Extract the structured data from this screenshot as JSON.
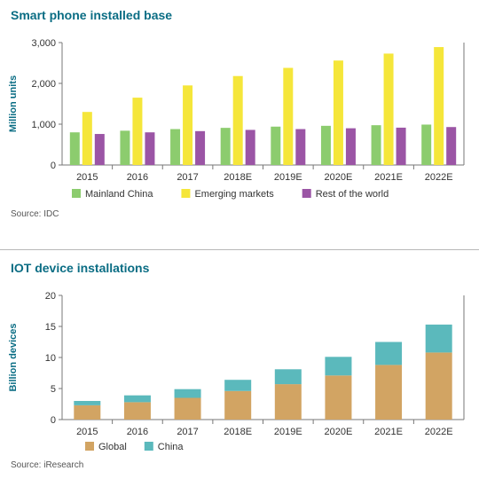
{
  "chart_data": [
    {
      "type": "bar",
      "title": "Smart phone installed base",
      "ylabel": "Million units",
      "xlabel": "",
      "ylim": [
        0,
        3000
      ],
      "yticks": [
        0,
        1000,
        2000,
        3000
      ],
      "ytick_labels": [
        "0",
        "1,000",
        "2,000",
        "3,000"
      ],
      "categories": [
        "2015",
        "2016",
        "2017",
        "2018E",
        "2019E",
        "2020E",
        "2021E",
        "2022E"
      ],
      "stacked": false,
      "legend_position": "bottom",
      "grid": false,
      "series": [
        {
          "name": "Mainland China",
          "color": "#8ccc6e",
          "values": [
            800,
            840,
            880,
            910,
            940,
            960,
            975,
            990
          ]
        },
        {
          "name": "Emerging markets",
          "color": "#f5e63a",
          "values": [
            1300,
            1650,
            1950,
            2180,
            2380,
            2560,
            2730,
            2890
          ]
        },
        {
          "name": "Rest of the world",
          "color": "#9b55a5",
          "values": [
            760,
            800,
            830,
            860,
            880,
            900,
            915,
            930
          ]
        }
      ],
      "source": "Source: IDC"
    },
    {
      "type": "bar",
      "title": "IOT device installations",
      "ylabel": "Billion devices",
      "xlabel": "",
      "ylim": [
        0,
        20
      ],
      "yticks": [
        0,
        5,
        10,
        15,
        20
      ],
      "ytick_labels": [
        "0",
        "5",
        "10",
        "15",
        "20"
      ],
      "categories": [
        "2015",
        "2016",
        "2017",
        "2018E",
        "2019E",
        "2020E",
        "2021E",
        "2022E"
      ],
      "stacked": true,
      "legend_position": "bottom",
      "grid": false,
      "series": [
        {
          "name": "Global",
          "color": "#d2a463",
          "values": [
            2.3,
            2.8,
            3.5,
            4.6,
            5.7,
            7.1,
            8.8,
            10.8
          ]
        },
        {
          "name": "China",
          "color": "#5bb9bc",
          "values": [
            0.7,
            1.1,
            1.4,
            1.8,
            2.4,
            3.0,
            3.7,
            4.5
          ]
        }
      ],
      "source": "Source: iResearch"
    }
  ]
}
